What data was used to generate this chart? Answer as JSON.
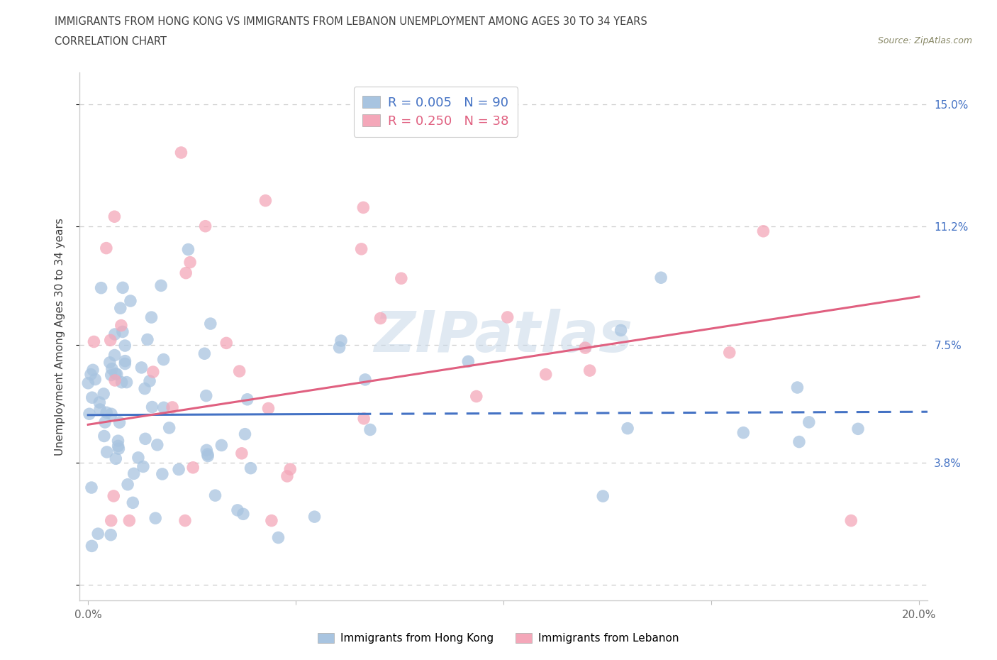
{
  "title_line1": "IMMIGRANTS FROM HONG KONG VS IMMIGRANTS FROM LEBANON UNEMPLOYMENT AMONG AGES 30 TO 34 YEARS",
  "title_line2": "CORRELATION CHART",
  "source_text": "Source: ZipAtlas.com",
  "ylabel": "Unemployment Among Ages 30 to 34 years",
  "xlim": [
    -0.002,
    0.202
  ],
  "ylim": [
    -0.005,
    0.16
  ],
  "yticks": [
    0.0,
    0.038,
    0.075,
    0.112,
    0.15
  ],
  "ytick_labels": [
    "",
    "3.8%",
    "7.5%",
    "11.2%",
    "15.0%"
  ],
  "xticks": [
    0.0,
    0.05,
    0.1,
    0.15,
    0.2
  ],
  "xtick_labels": [
    "0.0%",
    "",
    "",
    "",
    "20.0%"
  ],
  "hk_R": 0.005,
  "hk_N": 90,
  "lb_R": 0.25,
  "lb_N": 38,
  "hk_color": "#a8c4e0",
  "lb_color": "#f4a7b9",
  "hk_line_color": "#4472c4",
  "lb_line_color": "#e06080",
  "watermark": "ZIPatlas",
  "legend_label_hk": "Immigrants from Hong Kong",
  "legend_label_lb": "Immigrants from Lebanon",
  "background_color": "#ffffff",
  "grid_color": "#c8c8c8",
  "title_color": "#404040",
  "axis_label_color": "#404040",
  "tick_label_color_right": "#4472c4",
  "source_color": "#888866"
}
